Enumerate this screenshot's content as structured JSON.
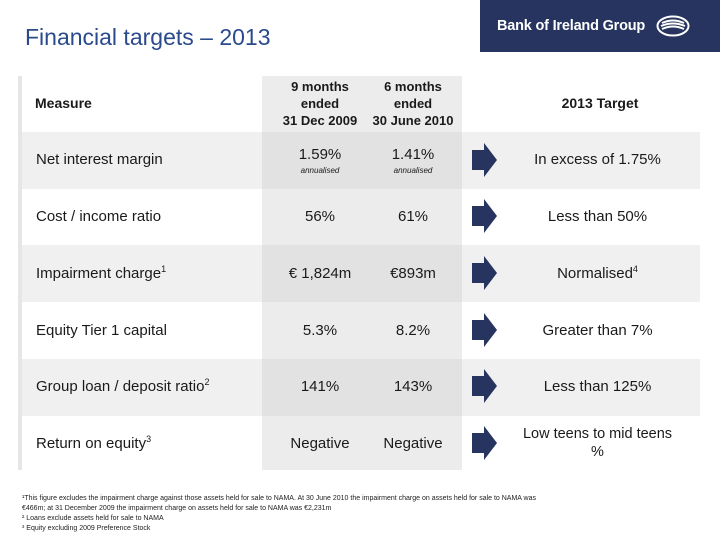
{
  "title": "Financial targets – 2013",
  "brand": {
    "name": "Bank of Ireland Group"
  },
  "headers": {
    "measure": "Measure",
    "col1": [
      "9 months",
      "ended",
      "31 Dec 2009"
    ],
    "col2": [
      "6 months",
      "ended",
      "30 June 2010"
    ],
    "target": "2013 Target"
  },
  "rows": [
    {
      "measure": "Net interest margin",
      "sup": "",
      "v1": "1.59%",
      "v1_sub": "annualised",
      "v2": "1.41%",
      "v2_sub": "annualised",
      "target": "In excess of 1.75%",
      "target_sup": ""
    },
    {
      "measure": "Cost / income ratio",
      "sup": "",
      "v1": "56%",
      "v1_sub": "",
      "v2": "61%",
      "v2_sub": "",
      "target": "Less than 50%",
      "target_sup": ""
    },
    {
      "measure": "Impairment charge",
      "sup": "1",
      "v1": "€ 1,824m",
      "v1_sub": "",
      "v2": "€893m",
      "v2_sub": "",
      "target": "Normalised",
      "target_sup": "4"
    },
    {
      "measure": "Equity Tier 1 capital",
      "sup": "",
      "v1": "5.3%",
      "v1_sub": "",
      "v2": "8.2%",
      "v2_sub": "",
      "target": "Greater than 7%",
      "target_sup": ""
    },
    {
      "measure": "Group loan / deposit ratio",
      "sup": "2",
      "v1": "141%",
      "v1_sub": "",
      "v2": "143%",
      "v2_sub": "",
      "target": "Less than 125%",
      "target_sup": ""
    },
    {
      "measure": "Return on equity",
      "sup": "3",
      "v1": "Negative",
      "v1_sub": "",
      "v2": "Negative",
      "v2_sub": "",
      "target": "Low teens to mid teens %",
      "target_sup": ""
    }
  ],
  "footnotes": [
    "¹This figure excludes the impairment charge against those assets held for sale to NAMA. At 30 June 2010 the impairment charge on assets held for sale to NAMA was",
    "   €466m; at 31 December 2009 the impairment charge on assets held for sale to NAMA was €2,231m",
    "² Loans exclude assets held for sale to NAMA",
    "³ Equity excluding 2009 Preference Stock"
  ],
  "colors": {
    "title": "#2a4a8c",
    "brand_bg": "#26345f",
    "arrow": "#26345f"
  }
}
